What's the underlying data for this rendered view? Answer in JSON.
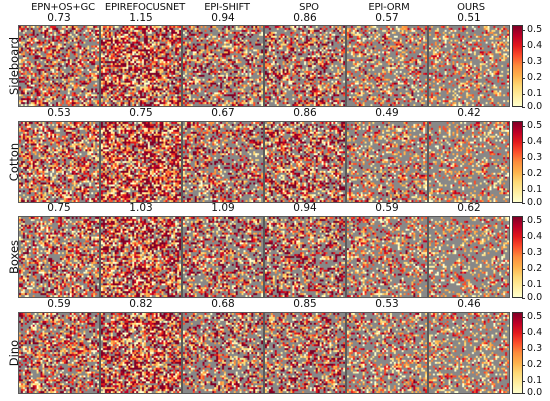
{
  "columns": [
    "EPN+OS+GC",
    "EPIREFOCUSNET",
    "EPI-SHIFT",
    "SPO",
    "EPI-ORM",
    "OURS"
  ],
  "rows": [
    {
      "name": "Sideboard",
      "scores": [
        "0.73",
        "1.15",
        "0.94",
        "0.86",
        "0.57",
        "0.51"
      ]
    },
    {
      "name": "Cotton",
      "scores": [
        "0.53",
        "0.75",
        "0.67",
        "0.86",
        "0.49",
        "0.42"
      ]
    },
    {
      "name": "Boxes",
      "scores": [
        "0.75",
        "1.03",
        "1.09",
        "0.94",
        "0.59",
        "0.62"
      ]
    },
    {
      "name": "Dino",
      "scores": [
        "0.59",
        "0.82",
        "0.68",
        "0.85",
        "0.53",
        "0.46"
      ]
    }
  ],
  "colorbar": {
    "ticks": [
      "0.5",
      "0.4",
      "0.3",
      "0.2",
      "0.1",
      "0.0"
    ],
    "colormap": [
      "#ffffcc",
      "#ffeda0",
      "#fed976",
      "#feb24c",
      "#fd8d3c",
      "#fc4e2a",
      "#e31a1c",
      "#bd0026",
      "#800026"
    ],
    "background_gray": "#888888"
  }
}
